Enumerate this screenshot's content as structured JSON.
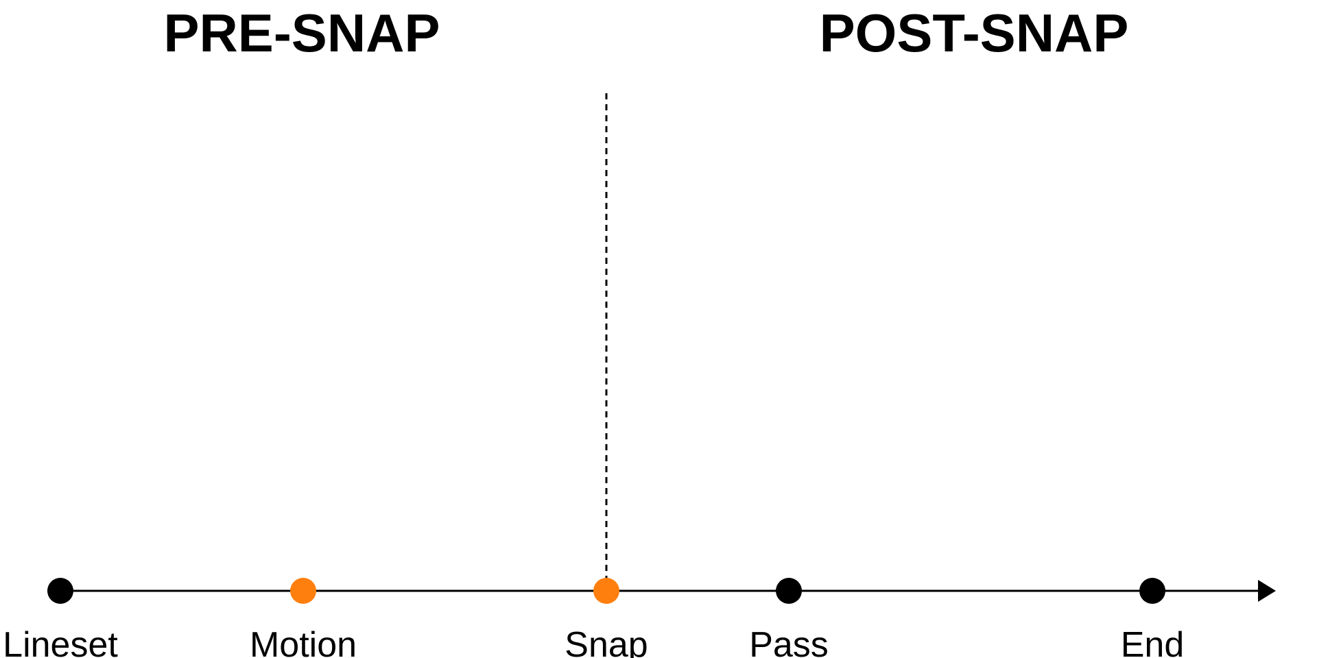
{
  "headings": {
    "pre": "PRE-SNAP",
    "post": "POST-SNAP"
  },
  "colors": {
    "line": "#000000",
    "event_default": "#000000",
    "event_highlight": "#ff7f0e"
  },
  "timeline": {
    "divider_event": "Snap",
    "events": [
      {
        "label": "Lineset",
        "color": "#000000"
      },
      {
        "label": "Motion",
        "color": "#ff7f0e"
      },
      {
        "label": "Snap",
        "color": "#ff7f0e"
      },
      {
        "label": "Pass",
        "color": "#000000"
      },
      {
        "label": "End",
        "color": "#000000"
      }
    ]
  }
}
